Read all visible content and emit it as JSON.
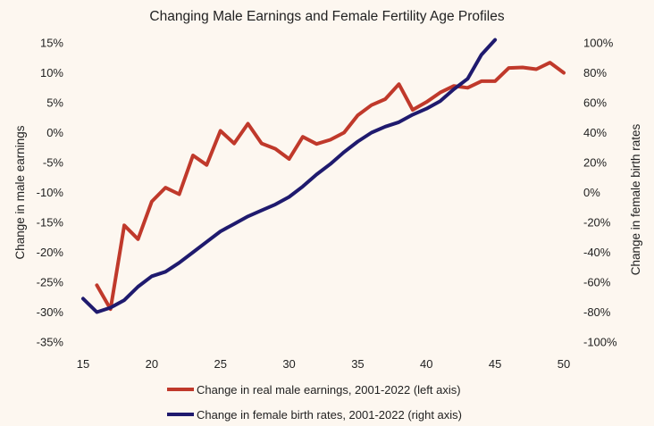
{
  "chart_data": {
    "type": "line",
    "title": "Changing Male Earnings and Female Fertility Age Profiles",
    "xlabel": "",
    "ylabel": "Change in male earnings",
    "y2label": "Change in female birth rates",
    "xlim": [
      15,
      50
    ],
    "x_ticks": [
      "15",
      "20",
      "25",
      "30",
      "35",
      "40",
      "45",
      "50"
    ],
    "ylim": [
      -35,
      15
    ],
    "y_ticks": [
      "15%",
      "10%",
      "5%",
      "0%",
      "-5%",
      "-10%",
      "-15%",
      "-20%",
      "-25%",
      "-30%",
      "-35%"
    ],
    "y2lim": [
      -100,
      100
    ],
    "y2_ticks": [
      "100%",
      "80%",
      "60%",
      "40%",
      "20%",
      "0%",
      "-20%",
      "-40%",
      "-60%",
      "-80%",
      "-100%"
    ],
    "legend_position": "bottom",
    "series": [
      {
        "name": "Change in real male earnings, 2001-2022 (left axis)",
        "axis": "left",
        "color": "#c0392b",
        "x": [
          16,
          17,
          18,
          19,
          20,
          21,
          22,
          23,
          24,
          25,
          26,
          27,
          28,
          29,
          30,
          31,
          32,
          33,
          34,
          35,
          36,
          37,
          38,
          39,
          40,
          41,
          42,
          43,
          44,
          45,
          46,
          47,
          48,
          49,
          50
        ],
        "values": [
          -25.5,
          -29.5,
          -15.5,
          -17.8,
          -11.5,
          -9.2,
          -10.3,
          -3.8,
          -5.4,
          0.3,
          -1.8,
          1.5,
          -1.8,
          -2.7,
          -4.4,
          -0.7,
          -1.9,
          -1.2,
          0,
          2.9,
          4.6,
          5.6,
          8.1,
          3.8,
          5.1,
          6.7,
          7.8,
          7.5,
          8.6,
          8.6,
          10.8,
          10.9,
          10.6,
          11.7,
          10.0
        ]
      },
      {
        "name": "Change in female birth rates, 2001-2022 (right axis)",
        "axis": "right",
        "color": "#1f1a6e",
        "x": [
          15,
          16,
          17,
          18,
          19,
          20,
          21,
          22,
          23,
          24,
          25,
          26,
          27,
          28,
          29,
          30,
          31,
          32,
          33,
          34,
          35,
          36,
          37,
          38,
          39,
          40,
          41,
          42,
          43,
          44,
          45
        ],
        "values": [
          -71,
          -80,
          -77,
          -72,
          -63,
          -56,
          -53,
          -47,
          -40,
          -33,
          -26,
          -21,
          -16,
          -12,
          -8,
          -3,
          4,
          12,
          19,
          27,
          34,
          40,
          44,
          47,
          52,
          56,
          61,
          69,
          76,
          92,
          102
        ]
      }
    ]
  }
}
